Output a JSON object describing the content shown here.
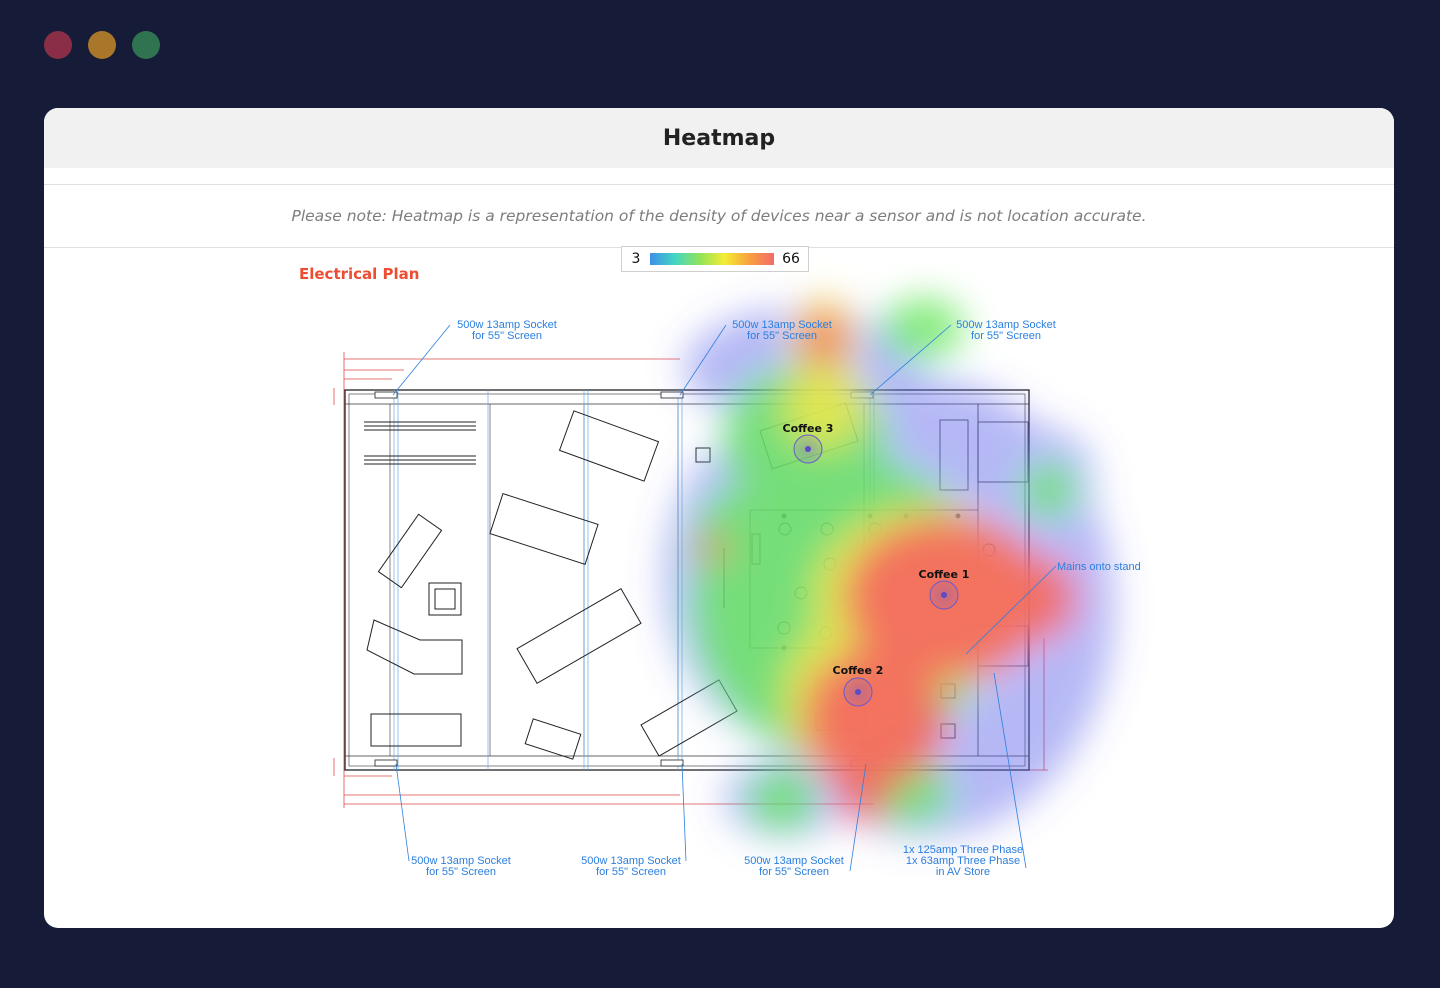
{
  "window": {
    "controls": [
      {
        "name": "close",
        "color": "#8a2e47"
      },
      {
        "name": "minimize",
        "color": "#a8772a"
      },
      {
        "name": "maximize",
        "color": "#2f7350"
      }
    ]
  },
  "page": {
    "title": "Heatmap",
    "note": "Please note: Heatmap is a representation of the density of devices near a sensor and is not location accurate."
  },
  "legend": {
    "min": "3",
    "max": "66",
    "gradient": [
      "#3f8fe8",
      "#43d6c4",
      "#8fe35a",
      "#f5ec35",
      "#f7a13e",
      "#f36b6b"
    ]
  },
  "plan": {
    "title": "Electrical Plan",
    "title_color": "#ee4d32",
    "annotations": {
      "socket_line1": "500w 13amp Socket",
      "socket_line2": "for 55\" Screen",
      "mains": "Mains onto stand",
      "phase_line1": "1x 125amp Three Phase",
      "phase_line2": "1x 63amp Three Phase",
      "phase_line3": "in AV Store"
    },
    "sensors": [
      {
        "label": "Coffee 3"
      },
      {
        "label": "Coffee 1"
      },
      {
        "label": "Coffee 2"
      }
    ]
  },
  "colors": {
    "background": "#161c38",
    "annotation": "#2b7fe0",
    "sensor": "#6a5acd"
  }
}
